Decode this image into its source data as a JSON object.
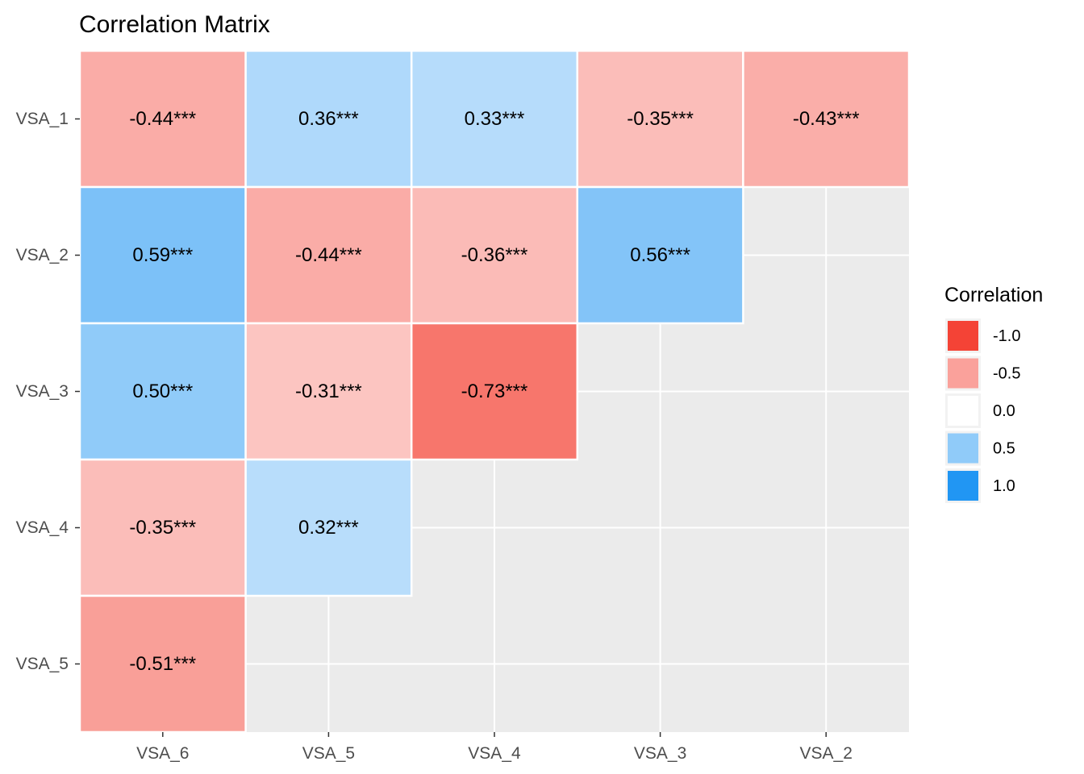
{
  "chart_data": {
    "type": "heatmap",
    "title": "Correlation Matrix",
    "xlabel": "",
    "ylabel": "",
    "x_categories": [
      "VSA_6",
      "VSA_5",
      "VSA_4",
      "VSA_3",
      "VSA_2"
    ],
    "y_categories": [
      "VSA_1",
      "VSA_2",
      "VSA_3",
      "VSA_4",
      "VSA_5"
    ],
    "cells": [
      {
        "x": "VSA_6",
        "y": "VSA_1",
        "value": -0.44,
        "label": "-0.44***"
      },
      {
        "x": "VSA_5",
        "y": "VSA_1",
        "value": 0.36,
        "label": "0.36***"
      },
      {
        "x": "VSA_4",
        "y": "VSA_1",
        "value": 0.33,
        "label": "0.33***"
      },
      {
        "x": "VSA_3",
        "y": "VSA_1",
        "value": -0.35,
        "label": "-0.35***"
      },
      {
        "x": "VSA_2",
        "y": "VSA_1",
        "value": -0.43,
        "label": "-0.43***"
      },
      {
        "x": "VSA_6",
        "y": "VSA_2",
        "value": 0.59,
        "label": "0.59***"
      },
      {
        "x": "VSA_5",
        "y": "VSA_2",
        "value": -0.44,
        "label": "-0.44***"
      },
      {
        "x": "VSA_4",
        "y": "VSA_2",
        "value": -0.36,
        "label": "-0.36***"
      },
      {
        "x": "VSA_3",
        "y": "VSA_2",
        "value": 0.56,
        "label": "0.56***"
      },
      {
        "x": "VSA_6",
        "y": "VSA_3",
        "value": 0.5,
        "label": "0.50***"
      },
      {
        "x": "VSA_5",
        "y": "VSA_3",
        "value": -0.31,
        "label": "-0.31***"
      },
      {
        "x": "VSA_4",
        "y": "VSA_3",
        "value": -0.73,
        "label": "-0.73***"
      },
      {
        "x": "VSA_6",
        "y": "VSA_4",
        "value": -0.35,
        "label": "-0.35***"
      },
      {
        "x": "VSA_5",
        "y": "VSA_4",
        "value": 0.32,
        "label": "0.32***"
      },
      {
        "x": "VSA_6",
        "y": "VSA_5",
        "value": -0.51,
        "label": "-0.51***"
      }
    ],
    "value_range": [
      -1,
      1
    ],
    "color_scale": {
      "low": "#f44336",
      "mid": "#ffffff",
      "high": "#2196f3"
    },
    "grid": true,
    "panel_background": "#ebebeb",
    "legend": {
      "title": "Correlation",
      "position": "right",
      "entries": [
        {
          "label": "-1.0",
          "value": -1.0
        },
        {
          "label": "-0.5",
          "value": -0.5
        },
        {
          "label": "0.0",
          "value": 0.0
        },
        {
          "label": "0.5",
          "value": 0.5
        },
        {
          "label": "1.0",
          "value": 1.0
        }
      ]
    }
  }
}
